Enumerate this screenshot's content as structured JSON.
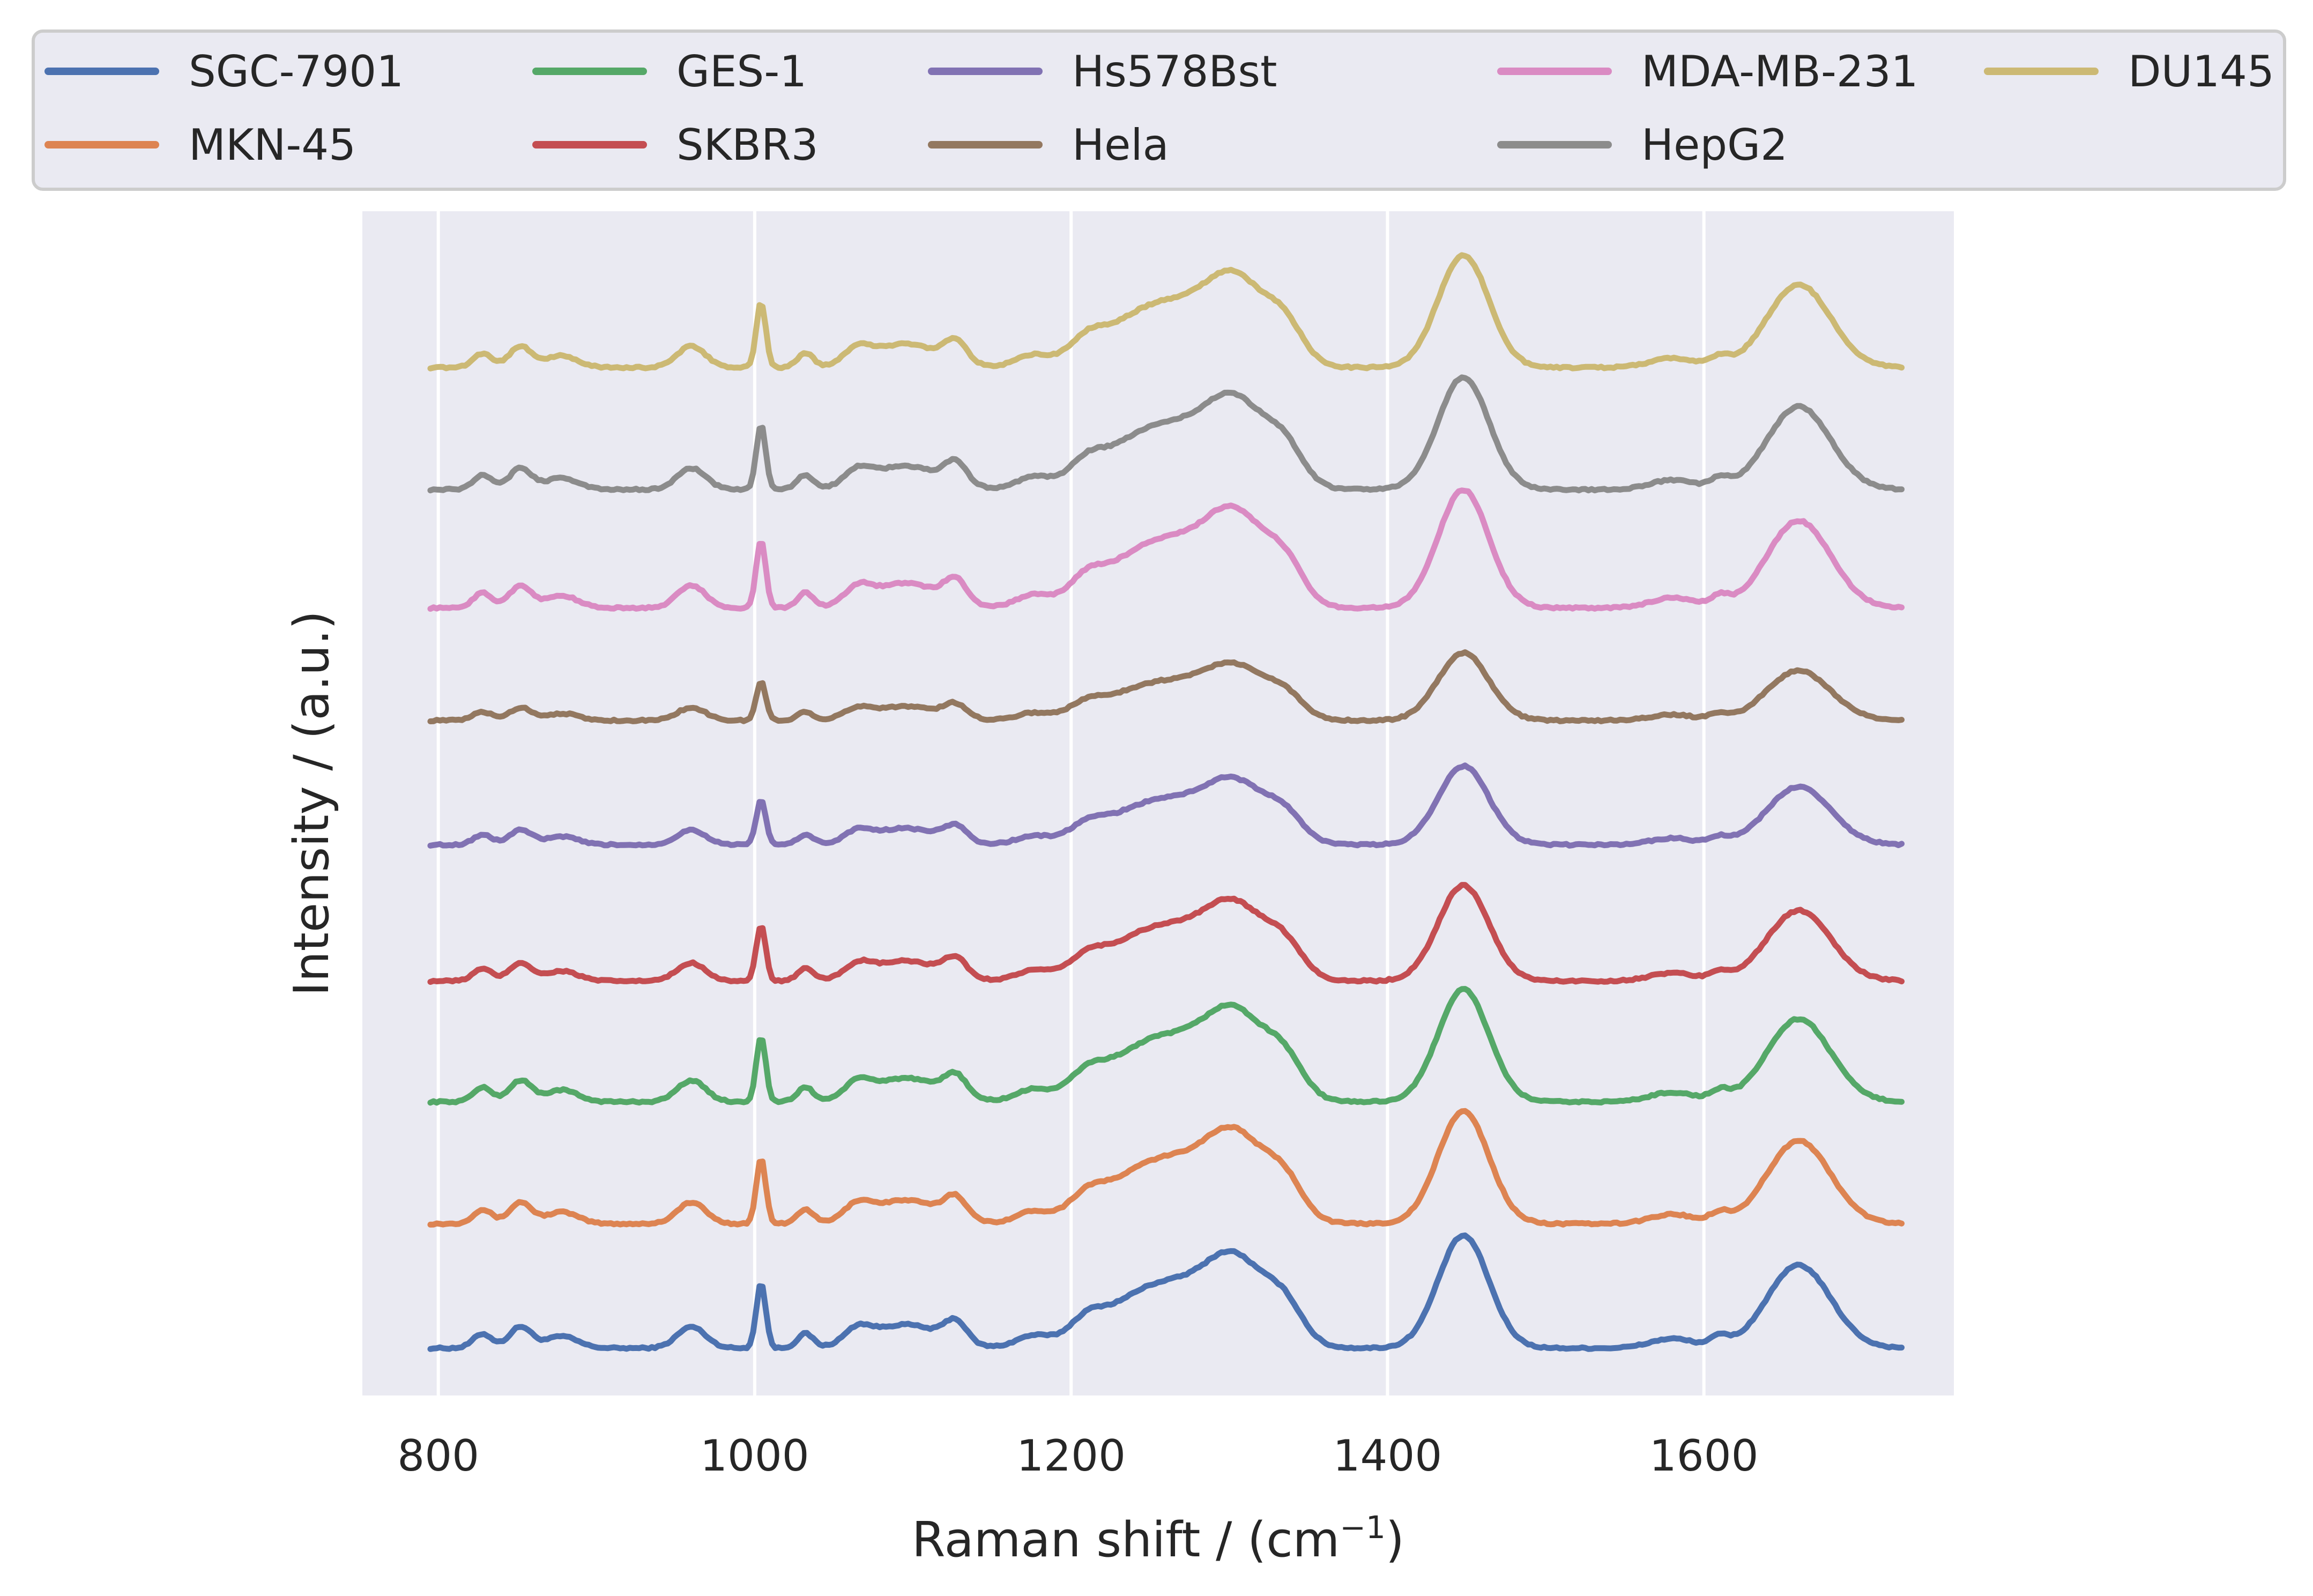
{
  "chart_data": {
    "type": "line",
    "title": "",
    "xlabel": "Raman shift / (cm",
    "xlabel_sup": "−1",
    "xlabel_end": ")",
    "ylabel": "Intensity / (a.u.)",
    "xlim": [
      752,
      1758
    ],
    "ylim": [
      0,
      1
    ],
    "x_ticks": [
      800,
      1000,
      1200,
      1400,
      1600
    ],
    "x_tick_labels": [
      "800",
      "1000",
      "1200",
      "1400",
      "1600"
    ],
    "grid": true,
    "legend_position": "top, above plot, 5 columns",
    "y_ticks_shown": false,
    "series": [
      {
        "name": "SGC-7901",
        "color": "#4c72b0",
        "baseline": 0.04,
        "peak_scale": 1.0
      },
      {
        "name": "MKN-45",
        "color": "#dd8452",
        "baseline": 0.145,
        "peak_scale": 1.0
      },
      {
        "name": "GES-1",
        "color": "#55a868",
        "baseline": 0.248,
        "peak_scale": 1.0
      },
      {
        "name": "SKBR3",
        "color": "#c44e52",
        "baseline": 0.35,
        "peak_scale": 0.85
      },
      {
        "name": "Hs578Bst",
        "color": "#8172b3",
        "baseline": 0.465,
        "peak_scale": 0.7
      },
      {
        "name": "Hela",
        "color": "#937860",
        "baseline": 0.57,
        "peak_scale": 0.6
      },
      {
        "name": "MDA-MB-231",
        "color": "#da8bc3",
        "baseline": 0.665,
        "peak_scale": 1.05
      },
      {
        "name": "HepG2",
        "color": "#8c8c8c",
        "baseline": 0.765,
        "peak_scale": 1.0
      },
      {
        "name": "DU145",
        "color": "#ccb974",
        "baseline": 0.868,
        "peak_scale": 1.0
      }
    ],
    "spectrum_range": [
      795,
      1725
    ],
    "spectrum_peaks": [
      {
        "center": 828,
        "width": 6,
        "amp": 0.012
      },
      {
        "center": 852,
        "width": 7,
        "amp": 0.018
      },
      {
        "center": 878,
        "width": 10,
        "amp": 0.01
      },
      {
        "center": 960,
        "width": 9,
        "amp": 0.018
      },
      {
        "center": 1004,
        "width": 3,
        "amp": 0.055
      },
      {
        "center": 1032,
        "width": 5,
        "amp": 0.012
      },
      {
        "center": 1065,
        "width": 8,
        "amp": 0.012
      },
      {
        "center": 1095,
        "width": 22,
        "amp": 0.02
      },
      {
        "center": 1127,
        "width": 7,
        "amp": 0.018
      },
      {
        "center": 1175,
        "width": 10,
        "amp": 0.008
      },
      {
        "center": 1210,
        "width": 10,
        "amp": 0.012
      },
      {
        "center": 1260,
        "width": 35,
        "amp": 0.055
      },
      {
        "center": 1305,
        "width": 18,
        "amp": 0.055
      },
      {
        "center": 1335,
        "width": 12,
        "amp": 0.03
      },
      {
        "center": 1448,
        "width": 16,
        "amp": 0.095
      },
      {
        "center": 1580,
        "width": 14,
        "amp": 0.008
      },
      {
        "center": 1610,
        "width": 6,
        "amp": 0.008
      },
      {
        "center": 1660,
        "width": 20,
        "amp": 0.07
      }
    ]
  }
}
